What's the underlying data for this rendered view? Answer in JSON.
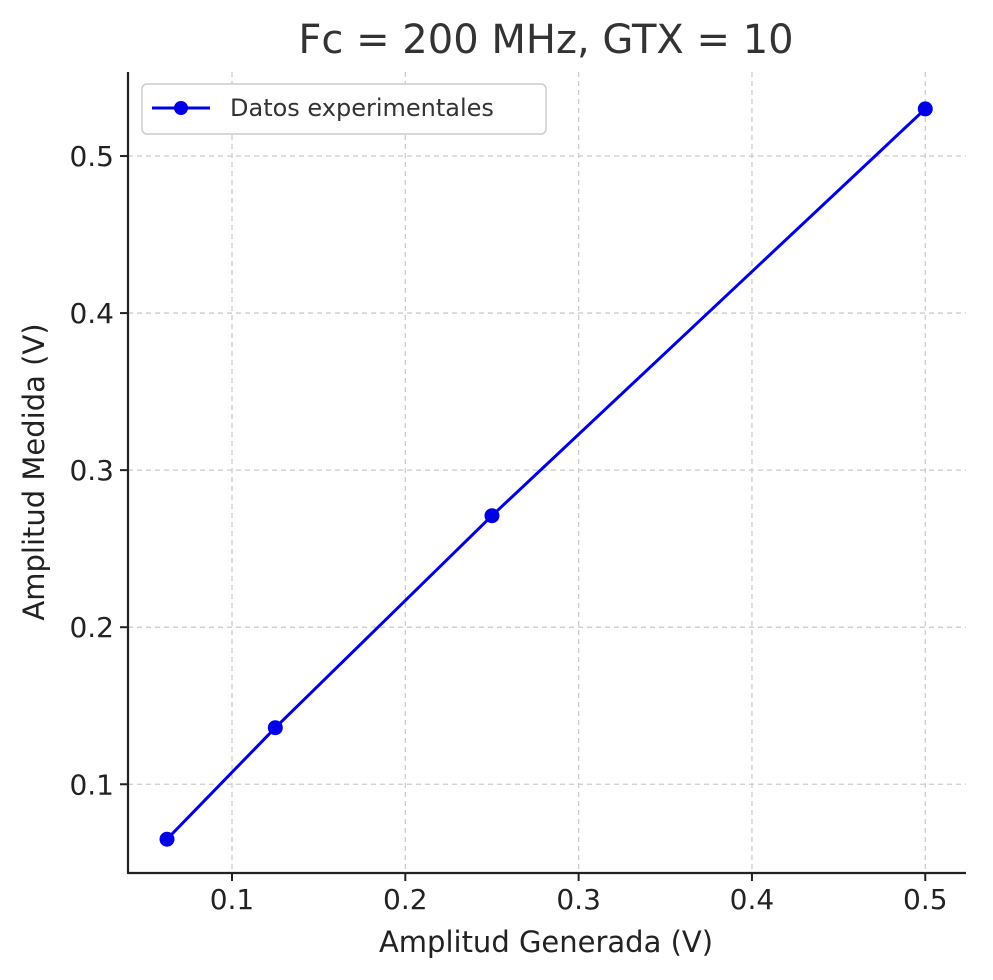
{
  "chart_data": {
    "type": "line",
    "title": "Fc = 200 MHz, GTX = 10",
    "xlabel": "Amplitud Generada (V)",
    "ylabel": "Amplitud Medida (V)",
    "xlim": [
      0.04,
      0.5235
    ],
    "ylim": [
      0.0435,
      0.5535
    ],
    "x_ticks": [
      0.1,
      0.2,
      0.3,
      0.4,
      0.5
    ],
    "x_tick_labels": [
      "0.1",
      "0.2",
      "0.3",
      "0.4",
      "0.5"
    ],
    "y_ticks": [
      0.1,
      0.2,
      0.3,
      0.4,
      0.5
    ],
    "y_tick_labels": [
      "0.1",
      "0.2",
      "0.3",
      "0.4",
      "0.5"
    ],
    "grid": true,
    "legend_position": "top-left",
    "series": [
      {
        "name": "Datos experimentales",
        "color": "#0000e6",
        "marker": "circle",
        "x": [
          0.0625,
          0.125,
          0.25,
          0.5
        ],
        "y": [
          0.065,
          0.136,
          0.271,
          0.53
        ]
      }
    ]
  }
}
